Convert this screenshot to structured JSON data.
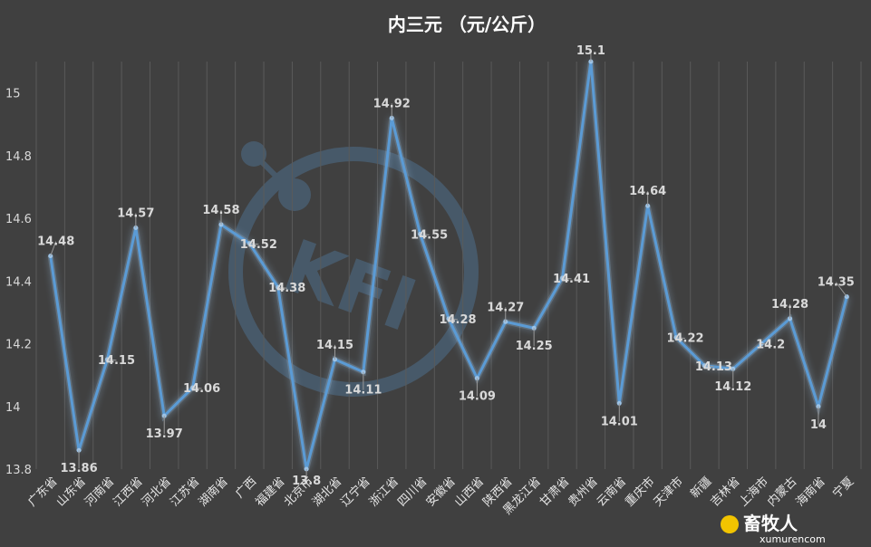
{
  "chart_data": {
    "type": "line",
    "title": "内三元  （元/公斤）",
    "xlabel": "",
    "ylabel": "",
    "ylim": [
      13.8,
      15.1
    ],
    "yticks": [
      13.8,
      14,
      14.2,
      14.4,
      14.6,
      14.8,
      15
    ],
    "grid": "vertical",
    "legend": "none",
    "colors": {
      "background": "#404040",
      "line": "#5b9bd5",
      "glow": "#9dc3e6",
      "text": "#d9d9d9"
    },
    "categories": [
      "广东省",
      "山东省",
      "河南省",
      "江西省",
      "河北省",
      "江苏省",
      "湖南省",
      "广西",
      "福建省",
      "北京市",
      "湖北省",
      "辽宁省",
      "浙江省",
      "四川省",
      "安徽省",
      "山西省",
      "陕西省",
      "黑龙江省",
      "甘肃省",
      "贵州省",
      "云南省",
      "重庆市",
      "天津市",
      "新疆",
      "吉林省",
      "上海市",
      "内蒙古",
      "海南省",
      "宁夏"
    ],
    "values": [
      14.48,
      13.86,
      14.15,
      14.57,
      13.97,
      14.06,
      14.58,
      14.52,
      14.38,
      13.8,
      14.15,
      14.11,
      14.92,
      14.55,
      14.28,
      14.09,
      14.27,
      14.25,
      14.41,
      15.1,
      14.01,
      14.64,
      14.22,
      14.13,
      14.12,
      14.2,
      14.28,
      14,
      14.35
    ],
    "data_labels": [
      "14.48",
      "13.86",
      "14.15",
      "14.57",
      "13.97",
      "14.06",
      "14.58",
      "14.52",
      "14.38",
      "13.8",
      "14.15",
      "14.11",
      "14.92",
      "14.55",
      "14.28",
      "14.09",
      "14.27",
      "14.25",
      "14.41",
      "15.1",
      "14.01",
      "14.64",
      "14.22",
      "14.13",
      "14.12",
      "14.2",
      "14.28",
      "14",
      "14.35"
    ]
  },
  "watermark": {
    "logo_text": "KFI",
    "brand_cn": "畜牧人",
    "site": "xumurencom"
  }
}
